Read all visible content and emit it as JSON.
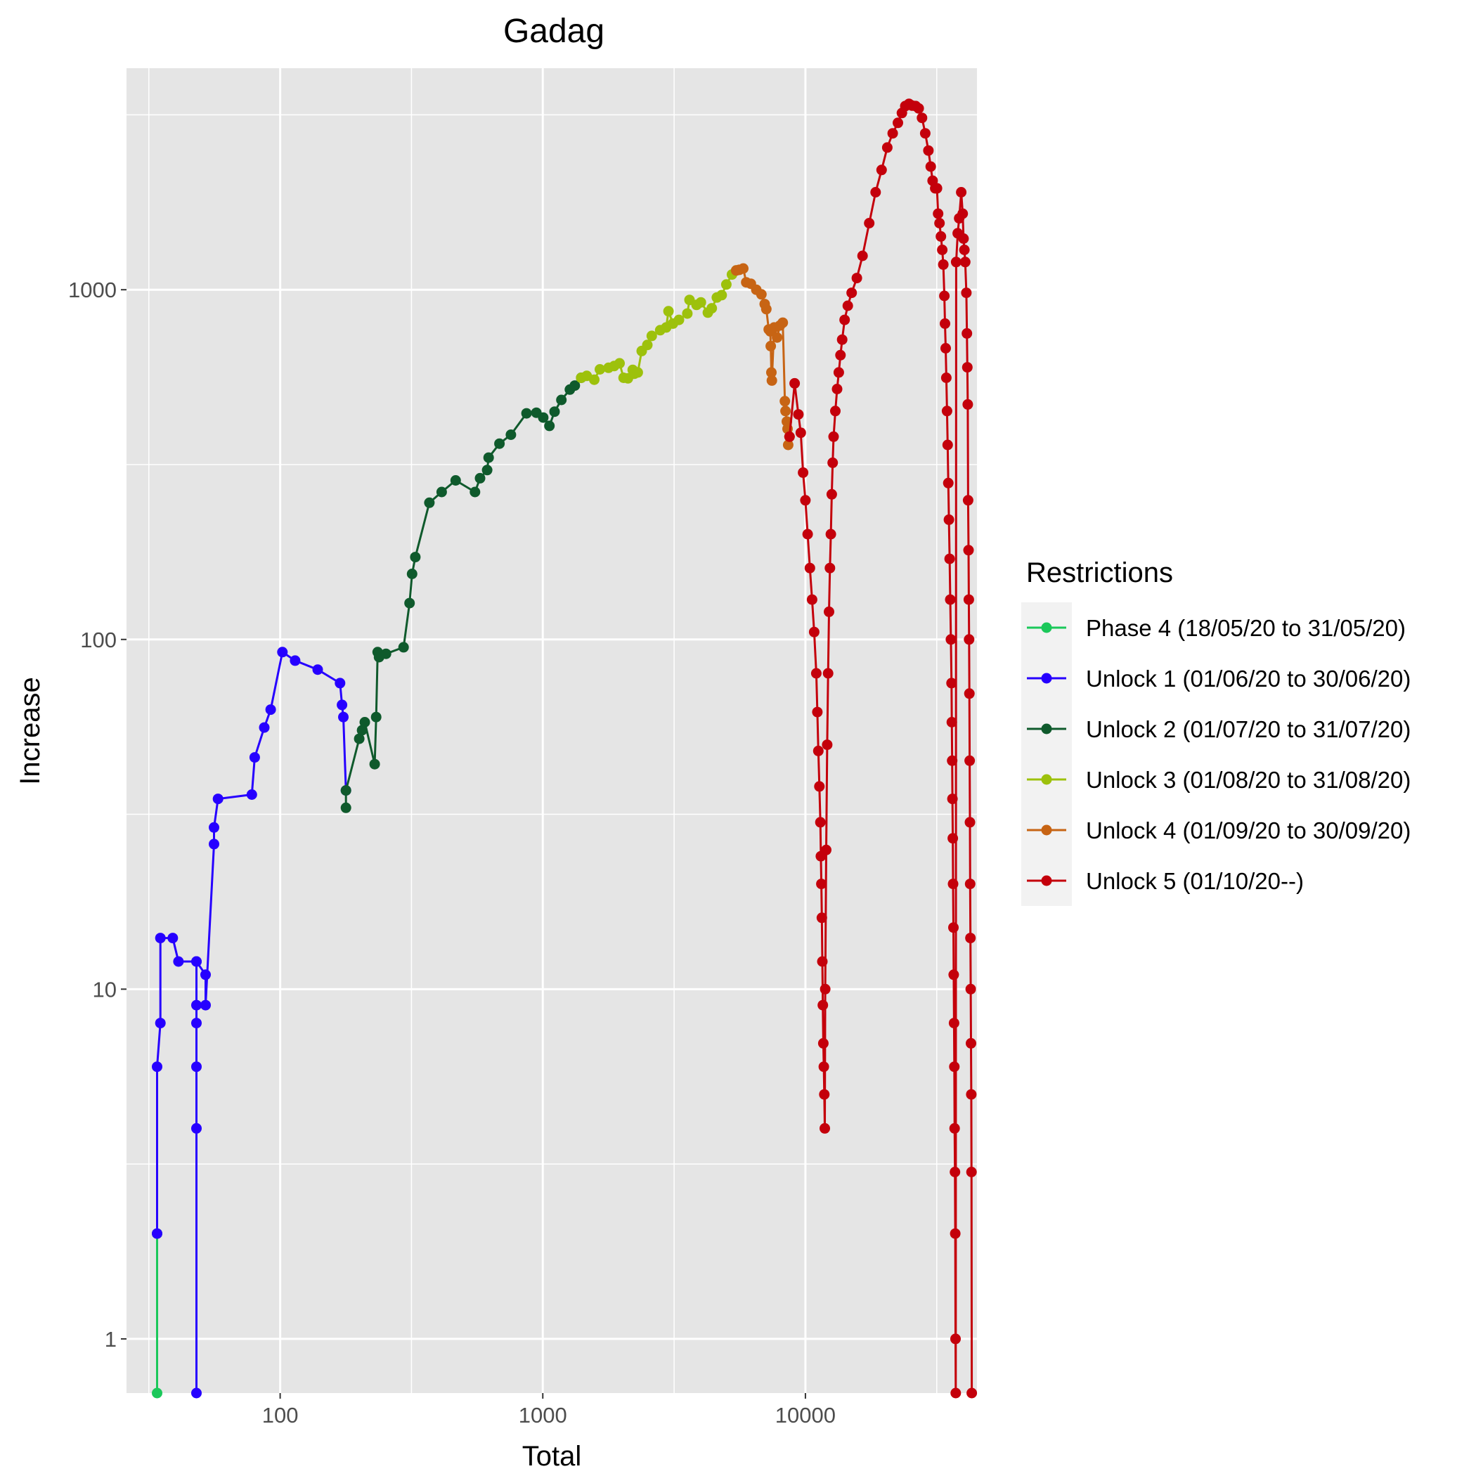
{
  "chart_data": {
    "type": "line",
    "title": "Gadag",
    "xlabel": "Total",
    "ylabel": "Increase",
    "x_scale": "log10",
    "y_scale": "log10",
    "xlim": [
      26,
      45000
    ],
    "ylim": [
      0.7,
      4300
    ],
    "x_ticks": [
      {
        "value": 100,
        "label": "100"
      },
      {
        "value": 1000,
        "label": "1000"
      },
      {
        "value": 10000,
        "label": "10000"
      }
    ],
    "y_ticks": [
      {
        "value": 1,
        "label": "1"
      },
      {
        "value": 10,
        "label": "10"
      },
      {
        "value": 100,
        "label": "100"
      },
      {
        "value": 1000,
        "label": "1000"
      }
    ],
    "grid": true,
    "legend_position": "right",
    "legend_title": "Restrictions",
    "series": [
      {
        "name": "Phase 4 (18/05/20 to 31/05/20)",
        "color": "#1bc85a",
        "points": [
          [
            34,
            2
          ],
          [
            34,
            0.7
          ]
        ]
      },
      {
        "name": "Unlock 1 (01/06/20 to 30/06/20)",
        "color": "#2600ff",
        "points": [
          [
            34,
            2
          ],
          [
            34,
            6
          ],
          [
            35,
            8
          ],
          [
            35,
            14
          ],
          [
            39,
            14
          ],
          [
            41,
            12
          ],
          [
            48,
            12
          ],
          [
            48,
            9
          ],
          [
            48,
            8
          ],
          [
            48,
            6
          ],
          [
            48,
            4
          ],
          [
            48,
            0.7
          ],
          [
            48,
            12
          ],
          [
            52,
            11
          ],
          [
            52,
            9
          ],
          [
            56,
            26
          ],
          [
            56,
            29
          ],
          [
            58,
            35
          ],
          [
            78,
            36
          ],
          [
            80,
            46
          ],
          [
            87,
            56
          ],
          [
            92,
            63
          ],
          [
            102,
            92
          ],
          [
            114,
            87
          ],
          [
            139,
            82
          ],
          [
            169,
            75
          ],
          [
            172,
            65
          ],
          [
            174,
            60
          ],
          [
            178,
            37
          ]
        ]
      },
      {
        "name": "Unlock 2 (01/07/20 to 31/07/20)",
        "color": "#0f5a2c",
        "points": [
          [
            178,
            33
          ],
          [
            178,
            37
          ],
          [
            200,
            52
          ],
          [
            205,
            55
          ],
          [
            210,
            58
          ],
          [
            229,
            44
          ],
          [
            232,
            60
          ],
          [
            235,
            92
          ],
          [
            238,
            89
          ],
          [
            253,
            91
          ],
          [
            295,
            95
          ],
          [
            311,
            127
          ],
          [
            318,
            154
          ],
          [
            327,
            172
          ],
          [
            370,
            246
          ],
          [
            412,
            264
          ],
          [
            466,
            285
          ],
          [
            552,
            264
          ],
          [
            577,
            289
          ],
          [
            614,
            305
          ],
          [
            622,
            331
          ],
          [
            684,
            363
          ],
          [
            756,
            385
          ],
          [
            867,
            443
          ],
          [
            945,
            445
          ],
          [
            1004,
            431
          ],
          [
            1060,
            408
          ],
          [
            1109,
            448
          ],
          [
            1177,
            484
          ],
          [
            1268,
            518
          ],
          [
            1324,
            532
          ],
          [
            1400,
            560
          ]
        ]
      },
      {
        "name": "Unlock 3 (01/08/20 to 31/08/20)",
        "color": "#9dc10c",
        "points": [
          [
            1400,
            560
          ],
          [
            1470,
            567
          ],
          [
            1570,
            553
          ],
          [
            1650,
            592
          ],
          [
            1780,
            598
          ],
          [
            1870,
            605
          ],
          [
            1960,
            616
          ],
          [
            2030,
            560
          ],
          [
            2110,
            558
          ],
          [
            2200,
            590
          ],
          [
            2230,
            575
          ],
          [
            2300,
            580
          ],
          [
            2380,
            668
          ],
          [
            2500,
            695
          ],
          [
            2600,
            738
          ],
          [
            2800,
            766
          ],
          [
            2950,
            780
          ],
          [
            3010,
            868
          ],
          [
            3130,
            800
          ],
          [
            3300,
            820
          ],
          [
            3550,
            855
          ],
          [
            3620,
            935
          ],
          [
            3850,
            905
          ],
          [
            4000,
            920
          ],
          [
            4250,
            860
          ],
          [
            4400,
            885
          ],
          [
            4600,
            950
          ],
          [
            4800,
            965
          ],
          [
            5000,
            1035
          ],
          [
            5250,
            1105
          ],
          [
            5450,
            1135
          ]
        ]
      },
      {
        "name": "Unlock 4 (01/09/20 to 30/09/20)",
        "color": "#c76414",
        "points": [
          [
            5450,
            1135
          ],
          [
            5600,
            1140
          ],
          [
            5800,
            1150
          ],
          [
            5950,
            1050
          ],
          [
            6200,
            1040
          ],
          [
            6500,
            1000
          ],
          [
            6800,
            970
          ],
          [
            7000,
            910
          ],
          [
            7100,
            880
          ],
          [
            7250,
            770
          ],
          [
            7350,
            760
          ],
          [
            7380,
            690
          ],
          [
            7420,
            580
          ],
          [
            7450,
            550
          ],
          [
            7600,
            780
          ],
          [
            7800,
            730
          ],
          [
            8000,
            790
          ],
          [
            8200,
            805
          ],
          [
            8350,
            480
          ],
          [
            8400,
            450
          ],
          [
            8500,
            420
          ],
          [
            8550,
            400
          ],
          [
            8600,
            360
          ],
          [
            8700,
            380
          ]
        ]
      },
      {
        "name": "Unlock 5 (01/10/20--)",
        "color": "#c4000b",
        "points": [
          [
            8700,
            380
          ],
          [
            9100,
            540
          ],
          [
            9400,
            440
          ],
          [
            9600,
            390
          ],
          [
            9800,
            300
          ],
          [
            10000,
            250
          ],
          [
            10200,
            200
          ],
          [
            10400,
            160
          ],
          [
            10600,
            130
          ],
          [
            10800,
            105
          ],
          [
            11000,
            80
          ],
          [
            11100,
            62
          ],
          [
            11200,
            48
          ],
          [
            11300,
            38
          ],
          [
            11400,
            30
          ],
          [
            11450,
            24
          ],
          [
            11500,
            20
          ],
          [
            11550,
            16
          ],
          [
            11600,
            12
          ],
          [
            11650,
            9
          ],
          [
            11700,
            7
          ],
          [
            11750,
            6
          ],
          [
            11800,
            5
          ],
          [
            11850,
            4
          ],
          [
            11900,
            10
          ],
          [
            12000,
            25
          ],
          [
            12100,
            50
          ],
          [
            12200,
            80
          ],
          [
            12300,
            120
          ],
          [
            12400,
            160
          ],
          [
            12500,
            200
          ],
          [
            12600,
            260
          ],
          [
            12700,
            320
          ],
          [
            12800,
            380
          ],
          [
            13000,
            450
          ],
          [
            13200,
            520
          ],
          [
            13400,
            580
          ],
          [
            13600,
            650
          ],
          [
            13800,
            720
          ],
          [
            14100,
            820
          ],
          [
            14500,
            900
          ],
          [
            15000,
            980
          ],
          [
            15700,
            1080
          ],
          [
            16500,
            1250
          ],
          [
            17500,
            1550
          ],
          [
            18500,
            1900
          ],
          [
            19500,
            2200
          ],
          [
            20500,
            2550
          ],
          [
            21500,
            2800
          ],
          [
            22500,
            3000
          ],
          [
            23300,
            3200
          ],
          [
            24000,
            3350
          ],
          [
            24800,
            3400
          ],
          [
            25500,
            3360
          ],
          [
            26300,
            3350
          ],
          [
            27000,
            3300
          ],
          [
            27800,
            3100
          ],
          [
            28600,
            2800
          ],
          [
            29400,
            2500
          ],
          [
            30000,
            2250
          ],
          [
            30500,
            2050
          ],
          [
            31200,
            1950
          ],
          [
            31700,
            1950
          ],
          [
            32000,
            1650
          ],
          [
            32400,
            1550
          ],
          [
            32800,
            1420
          ],
          [
            33200,
            1300
          ],
          [
            33500,
            1180
          ],
          [
            33800,
            960
          ],
          [
            34000,
            800
          ],
          [
            34200,
            680
          ],
          [
            34400,
            560
          ],
          [
            34600,
            450
          ],
          [
            34800,
            360
          ],
          [
            35000,
            280
          ],
          [
            35200,
            220
          ],
          [
            35400,
            170
          ],
          [
            35600,
            130
          ],
          [
            35800,
            100
          ],
          [
            36000,
            75
          ],
          [
            36100,
            58
          ],
          [
            36200,
            45
          ],
          [
            36300,
            35
          ],
          [
            36400,
            27
          ],
          [
            36500,
            20
          ],
          [
            36600,
            15
          ],
          [
            36700,
            11
          ],
          [
            36800,
            8
          ],
          [
            36900,
            6
          ],
          [
            37000,
            4
          ],
          [
            37100,
            3
          ],
          [
            37200,
            2
          ],
          [
            37300,
            1
          ],
          [
            37350,
            0.7
          ],
          [
            37500,
            1200
          ],
          [
            38000,
            1450
          ],
          [
            38500,
            1600
          ],
          [
            39200,
            1900
          ],
          [
            39700,
            1650
          ],
          [
            40000,
            1400
          ],
          [
            40300,
            1300
          ],
          [
            40600,
            1200
          ],
          [
            41000,
            980
          ],
          [
            41200,
            750
          ],
          [
            41350,
            600
          ],
          [
            41500,
            470
          ],
          [
            41650,
            250
          ],
          [
            41800,
            180
          ],
          [
            41900,
            130
          ],
          [
            42000,
            100
          ],
          [
            42100,
            70
          ],
          [
            42200,
            45
          ],
          [
            42300,
            30
          ],
          [
            42400,
            20
          ],
          [
            42500,
            14
          ],
          [
            42600,
            10
          ],
          [
            42700,
            7
          ],
          [
            42800,
            5
          ],
          [
            42900,
            3
          ],
          [
            43000,
            0.7
          ]
        ]
      }
    ]
  }
}
